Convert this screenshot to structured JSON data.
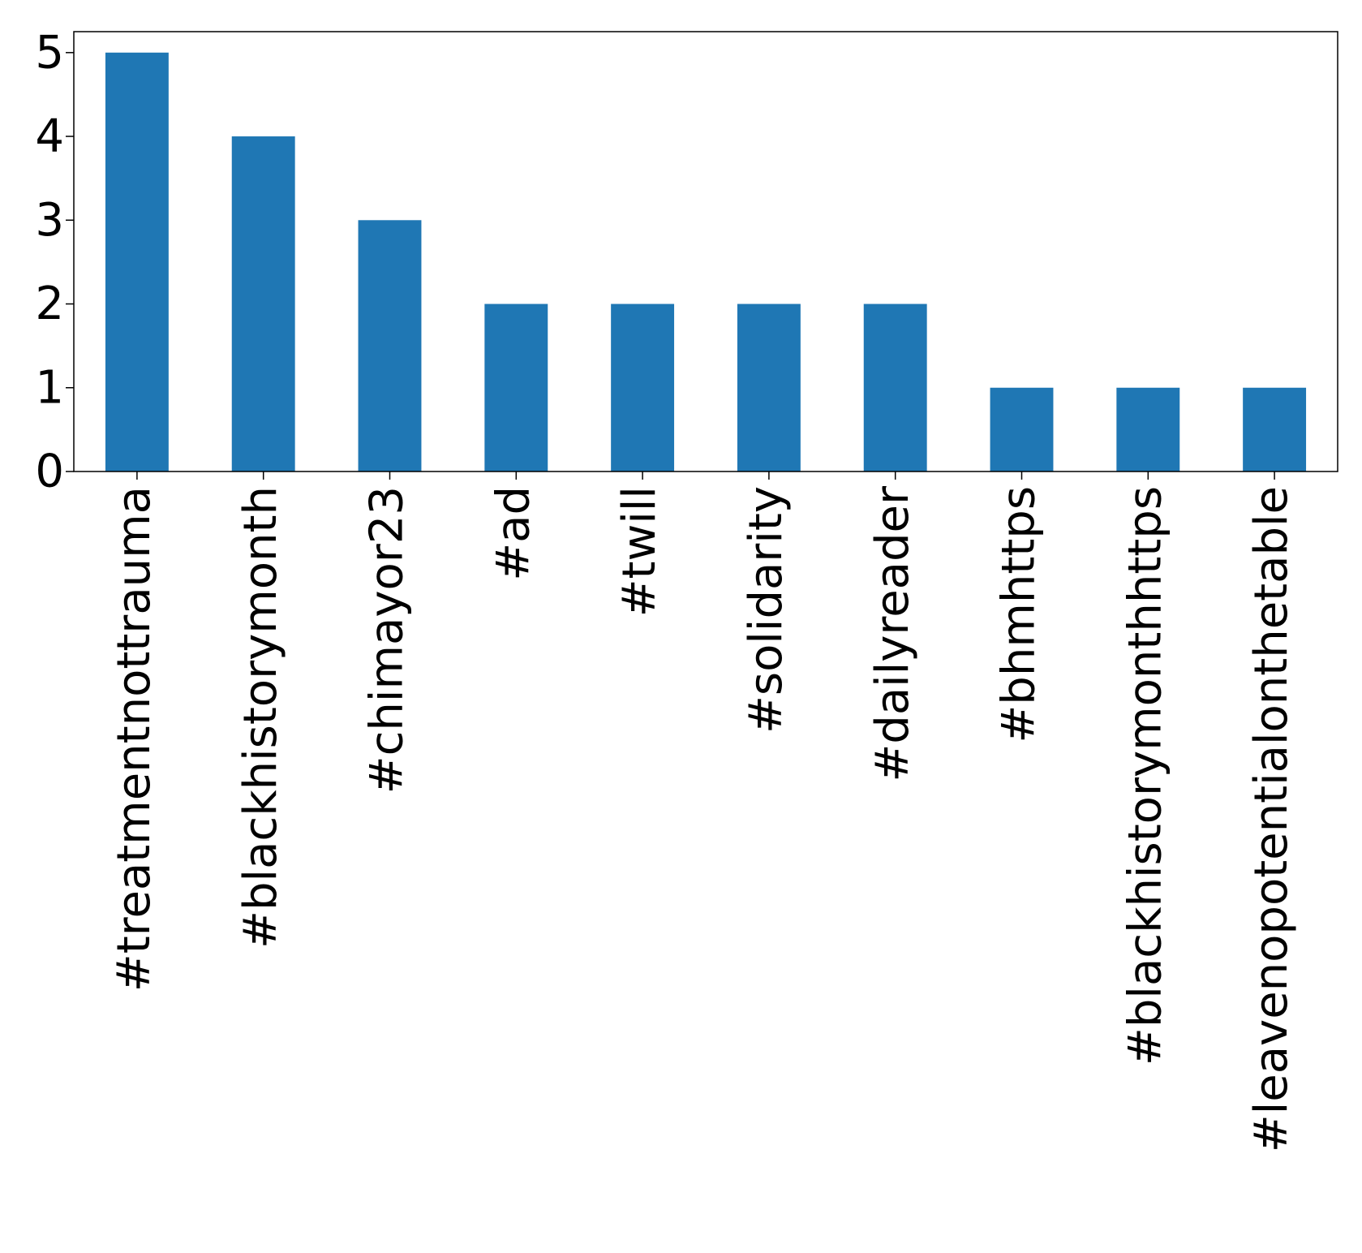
{
  "chart_data": {
    "type": "bar",
    "title": "",
    "xlabel": "",
    "ylabel": "",
    "categories": [
      "#treatmentnottrauma",
      "#blackhistorymonth",
      "#chimayor23",
      "#ad",
      "#twill",
      "#solidarity",
      "#dailyreader",
      "#bhmhttps",
      "#blackhistorymonthhttps",
      "#leavenopotentialonthetable"
    ],
    "values": [
      5,
      4,
      3,
      2,
      2,
      2,
      2,
      1,
      1,
      1
    ],
    "ylim": [
      0,
      5.25
    ],
    "yticks": [
      0,
      1,
      2,
      3,
      4,
      5
    ],
    "bar_color": "#1f77b4",
    "grid": false,
    "legend": "none"
  }
}
